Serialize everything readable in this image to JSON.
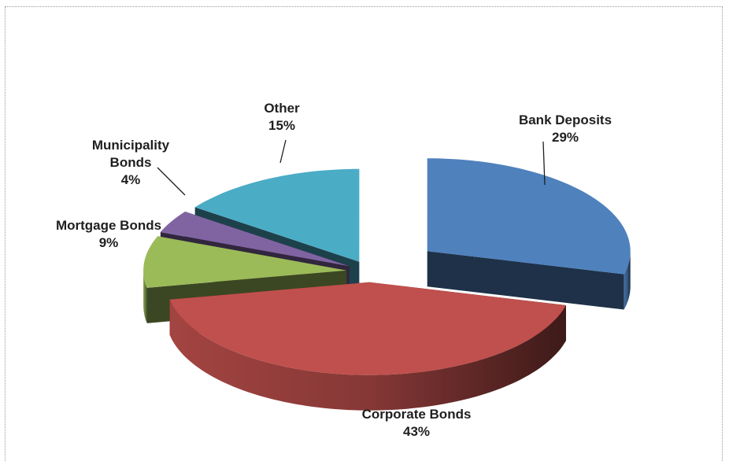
{
  "chart_data": {
    "type": "pie",
    "title": "",
    "categories": [
      "Bank Deposits",
      "Corporate Bonds",
      "Mortgage Bonds",
      "Municipality Bonds",
      "Other"
    ],
    "values": [
      29,
      43,
      9,
      4,
      15
    ],
    "slices": [
      {
        "label_lines": [
          "Bank Deposits"
        ],
        "pct": "29%",
        "color": "#4f81bd",
        "exploded": true
      },
      {
        "label_lines": [
          "Corporate Bonds"
        ],
        "pct": "43%",
        "color": "#c0504d",
        "exploded": false
      },
      {
        "label_lines": [
          "Mortgage Bonds"
        ],
        "pct": "9%",
        "color": "#9bbb59",
        "exploded": false
      },
      {
        "label_lines": [
          "Municipality",
          "Bonds"
        ],
        "pct": "4%",
        "color": "#8064a2",
        "exploded": false
      },
      {
        "label_lines": [
          "Other"
        ],
        "pct": "15%",
        "color": "#4bacc6",
        "exploded": false
      }
    ],
    "legend": "none",
    "style": "3d-exploded-pie"
  }
}
